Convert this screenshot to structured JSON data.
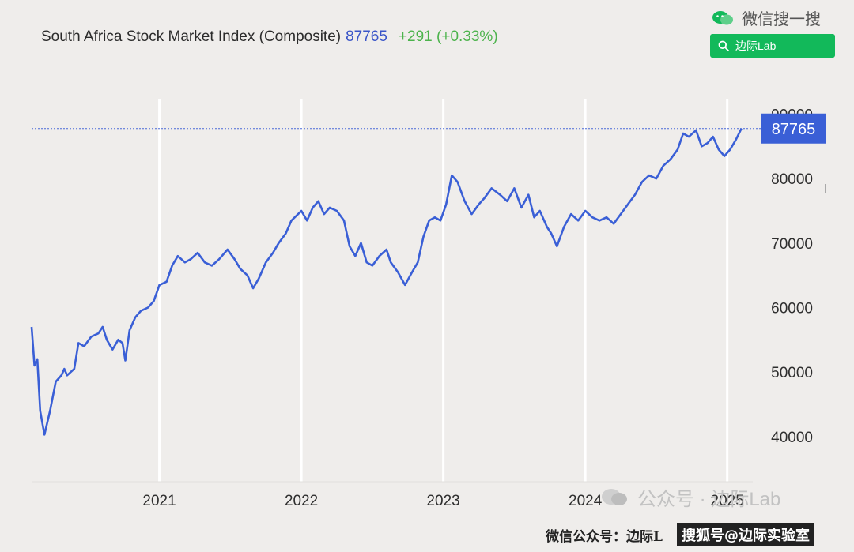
{
  "header": {
    "title": "South Africa Stock Market Index (Composite)",
    "last": "87765",
    "change": "+291 (+0.33%)"
  },
  "brand": {
    "wechat_search": "微信搜一搜",
    "search_button": "边际Lab"
  },
  "watermarks": {
    "account": "公众号 · 边际Lab",
    "footer_prefix": "微信公众号：边际L",
    "footer_sohu": "搜狐号@边际实验室"
  },
  "chart_data": {
    "type": "line",
    "title": "South Africa Stock Market Index (Composite)",
    "xlabel": "",
    "ylabel": "",
    "ylim": [
      33000,
      93000
    ],
    "yticks": [
      40000,
      50000,
      60000,
      70000,
      80000,
      90000
    ],
    "xlim": [
      2020.1,
      2025.18
    ],
    "xticks": [
      {
        "x": 2021,
        "label": "2021"
      },
      {
        "x": 2022,
        "label": "2022"
      },
      {
        "x": 2023,
        "label": "2023"
      },
      {
        "x": 2024,
        "label": "2024"
      },
      {
        "x": 2025,
        "label": "2025"
      }
    ],
    "grid": "vertical",
    "last_value": 87765,
    "last_value_label": "87765",
    "line_color": "#3a5fd6",
    "series": [
      {
        "values": [
          [
            2020.1,
            57000
          ],
          [
            2020.12,
            51000
          ],
          [
            2020.14,
            52000
          ],
          [
            2020.16,
            44000
          ],
          [
            2020.19,
            40300
          ],
          [
            2020.23,
            44000
          ],
          [
            2020.27,
            48500
          ],
          [
            2020.31,
            49500
          ],
          [
            2020.33,
            50500
          ],
          [
            2020.35,
            49500
          ],
          [
            2020.4,
            50500
          ],
          [
            2020.43,
            54500
          ],
          [
            2020.47,
            54000
          ],
          [
            2020.52,
            55500
          ],
          [
            2020.57,
            56000
          ],
          [
            2020.6,
            57000
          ],
          [
            2020.63,
            55000
          ],
          [
            2020.67,
            53500
          ],
          [
            2020.71,
            55000
          ],
          [
            2020.74,
            54500
          ],
          [
            2020.76,
            51800
          ],
          [
            2020.79,
            56500
          ],
          [
            2020.83,
            58500
          ],
          [
            2020.87,
            59500
          ],
          [
            2020.92,
            60000
          ],
          [
            2020.96,
            61000
          ],
          [
            2021.0,
            63500
          ],
          [
            2021.05,
            64000
          ],
          [
            2021.09,
            66500
          ],
          [
            2021.13,
            68000
          ],
          [
            2021.18,
            67000
          ],
          [
            2021.22,
            67500
          ],
          [
            2021.27,
            68500
          ],
          [
            2021.32,
            67000
          ],
          [
            2021.37,
            66500
          ],
          [
            2021.42,
            67500
          ],
          [
            2021.48,
            69000
          ],
          [
            2021.53,
            67500
          ],
          [
            2021.57,
            66000
          ],
          [
            2021.62,
            65000
          ],
          [
            2021.66,
            63000
          ],
          [
            2021.7,
            64500
          ],
          [
            2021.75,
            67000
          ],
          [
            2021.8,
            68500
          ],
          [
            2021.84,
            70000
          ],
          [
            2021.89,
            71500
          ],
          [
            2021.93,
            73500
          ],
          [
            2022.0,
            75000
          ],
          [
            2022.04,
            73500
          ],
          [
            2022.08,
            75500
          ],
          [
            2022.12,
            76500
          ],
          [
            2022.16,
            74500
          ],
          [
            2022.2,
            75500
          ],
          [
            2022.25,
            75000
          ],
          [
            2022.3,
            73500
          ],
          [
            2022.34,
            69500
          ],
          [
            2022.38,
            68000
          ],
          [
            2022.42,
            70000
          ],
          [
            2022.46,
            67000
          ],
          [
            2022.5,
            66500
          ],
          [
            2022.55,
            68000
          ],
          [
            2022.6,
            69000
          ],
          [
            2022.63,
            67000
          ],
          [
            2022.68,
            65500
          ],
          [
            2022.73,
            63500
          ],
          [
            2022.78,
            65500
          ],
          [
            2022.82,
            67000
          ],
          [
            2022.86,
            71000
          ],
          [
            2022.9,
            73500
          ],
          [
            2022.94,
            74000
          ],
          [
            2022.98,
            73500
          ],
          [
            2023.02,
            76000
          ],
          [
            2023.06,
            80500
          ],
          [
            2023.1,
            79500
          ],
          [
            2023.15,
            76500
          ],
          [
            2023.2,
            74500
          ],
          [
            2023.25,
            76000
          ],
          [
            2023.29,
            77000
          ],
          [
            2023.34,
            78500
          ],
          [
            2023.4,
            77500
          ],
          [
            2023.45,
            76500
          ],
          [
            2023.5,
            78500
          ],
          [
            2023.55,
            75500
          ],
          [
            2023.6,
            77500
          ],
          [
            2023.64,
            74000
          ],
          [
            2023.68,
            75000
          ],
          [
            2023.73,
            72500
          ],
          [
            2023.76,
            71500
          ],
          [
            2023.8,
            69500
          ],
          [
            2023.85,
            72500
          ],
          [
            2023.9,
            74500
          ],
          [
            2023.95,
            73500
          ],
          [
            2024.0,
            75000
          ],
          [
            2024.05,
            74000
          ],
          [
            2024.1,
            73500
          ],
          [
            2024.15,
            74000
          ],
          [
            2024.2,
            73000
          ],
          [
            2024.25,
            74500
          ],
          [
            2024.3,
            76000
          ],
          [
            2024.35,
            77500
          ],
          [
            2024.4,
            79500
          ],
          [
            2024.45,
            80500
          ],
          [
            2024.5,
            80000
          ],
          [
            2024.55,
            82000
          ],
          [
            2024.6,
            83000
          ],
          [
            2024.65,
            84500
          ],
          [
            2024.69,
            87000
          ],
          [
            2024.73,
            86500
          ],
          [
            2024.78,
            87500
          ],
          [
            2024.82,
            85000
          ],
          [
            2024.86,
            85500
          ],
          [
            2024.9,
            86500
          ],
          [
            2024.94,
            84500
          ],
          [
            2024.98,
            83500
          ],
          [
            2025.02,
            84500
          ],
          [
            2025.06,
            86000
          ],
          [
            2025.1,
            87765
          ]
        ]
      }
    ]
  }
}
